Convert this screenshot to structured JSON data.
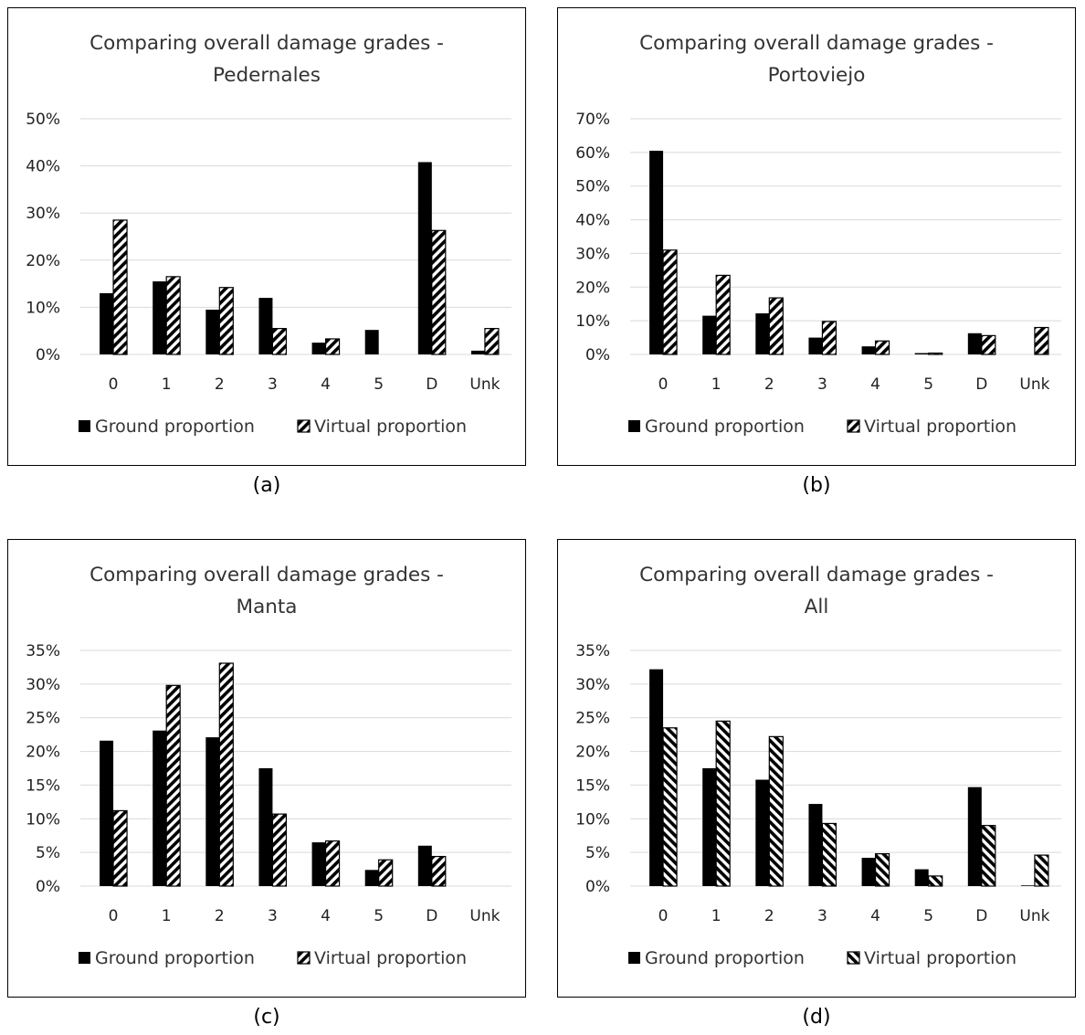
{
  "captions": [
    "(a)",
    "(b)",
    "(c)",
    "(d)"
  ],
  "chart_data": [
    {
      "type": "bar",
      "title": "Comparing overall damage grades - Pedernales",
      "title_lines": [
        "Comparing overall damage grades -",
        "Pedernales"
      ],
      "categories": [
        "0",
        "1",
        "2",
        "3",
        "4",
        "5",
        "D",
        "Unk"
      ],
      "series": [
        {
          "name": "Ground proportion",
          "values": [
            0.13,
            0.155,
            0.095,
            0.12,
            0.025,
            0.052,
            0.408,
            0.008
          ]
        },
        {
          "name": "Virtual proportion",
          "values": [
            0.285,
            0.165,
            0.142,
            0.055,
            0.033,
            0.0,
            0.263,
            0.055
          ]
        }
      ],
      "ylim": [
        0,
        0.5
      ],
      "yticks": [
        0,
        0.1,
        0.2,
        0.3,
        0.4,
        0.5
      ],
      "ytick_labels": [
        "0%",
        "10%",
        "20%",
        "30%",
        "40%",
        "50%"
      ],
      "grid": true,
      "legend_position": "bottom",
      "legend_style": "wide-diagonal"
    },
    {
      "type": "bar",
      "title": "Comparing overall damage grades - Portoviejo",
      "title_lines": [
        "Comparing overall damage grades -",
        "Portoviejo"
      ],
      "categories": [
        "0",
        "1",
        "2",
        "3",
        "4",
        "5",
        "D",
        "Unk"
      ],
      "series": [
        {
          "name": "Ground proportion",
          "values": [
            0.605,
            0.115,
            0.122,
            0.05,
            0.024,
            0.004,
            0.063,
            0.0
          ]
        },
        {
          "name": "Virtual proportion",
          "values": [
            0.31,
            0.235,
            0.168,
            0.098,
            0.04,
            0.004,
            0.056,
            0.08
          ]
        }
      ],
      "ylim": [
        0,
        0.7
      ],
      "yticks": [
        0,
        0.1,
        0.2,
        0.3,
        0.4,
        0.5,
        0.6,
        0.7
      ],
      "ytick_labels": [
        "0%",
        "10%",
        "20%",
        "30%",
        "40%",
        "50%",
        "60%",
        "70%"
      ],
      "grid": true,
      "legend_position": "bottom",
      "legend_style": "wide-diagonal"
    },
    {
      "type": "bar",
      "title": "Comparing overall damage grades - Manta",
      "title_lines": [
        "Comparing overall damage grades -",
        "Manta"
      ],
      "categories": [
        "0",
        "1",
        "2",
        "3",
        "4",
        "5",
        "D",
        "Unk"
      ],
      "series": [
        {
          "name": "Ground proportion",
          "values": [
            0.216,
            0.231,
            0.221,
            0.175,
            0.065,
            0.024,
            0.06,
            0.0
          ]
        },
        {
          "name": "Virtual proportion",
          "values": [
            0.112,
            0.298,
            0.331,
            0.107,
            0.067,
            0.039,
            0.044,
            0.0
          ]
        }
      ],
      "ylim": [
        0,
        0.35
      ],
      "yticks": [
        0,
        0.05,
        0.1,
        0.15,
        0.2,
        0.25,
        0.3,
        0.35
      ],
      "ytick_labels": [
        "0%",
        "5%",
        "10%",
        "15%",
        "20%",
        "25%",
        "30%",
        "35%"
      ],
      "grid": true,
      "legend_position": "bottom",
      "legend_style": "wide-diagonal"
    },
    {
      "type": "bar",
      "title": "Comparing overall damage grades - All",
      "title_lines": [
        "Comparing overall damage grades -",
        "All"
      ],
      "categories": [
        "0",
        "1",
        "2",
        "3",
        "4",
        "5",
        "D",
        "Unk"
      ],
      "series": [
        {
          "name": "Ground proportion",
          "values": [
            0.322,
            0.175,
            0.158,
            0.122,
            0.042,
            0.025,
            0.147,
            0.001
          ]
        },
        {
          "name": "Virtual proportion",
          "values": [
            0.235,
            0.245,
            0.222,
            0.093,
            0.048,
            0.015,
            0.09,
            0.046
          ]
        }
      ],
      "ylim": [
        0,
        0.35
      ],
      "yticks": [
        0,
        0.05,
        0.1,
        0.15,
        0.2,
        0.25,
        0.3,
        0.35
      ],
      "ytick_labels": [
        "0%",
        "5%",
        "10%",
        "15%",
        "20%",
        "25%",
        "30%",
        "35%"
      ],
      "grid": true,
      "legend_position": "bottom",
      "legend_style": "dark-upward-diagonal"
    }
  ],
  "colors": {
    "ground_fill": "#000000",
    "virtual_stripe": "#000000",
    "virtual_background": "#ffffff",
    "gridline": "#d9d9d9",
    "axis": "#d9d9d9",
    "frame": "#000000",
    "text": "#222222"
  }
}
